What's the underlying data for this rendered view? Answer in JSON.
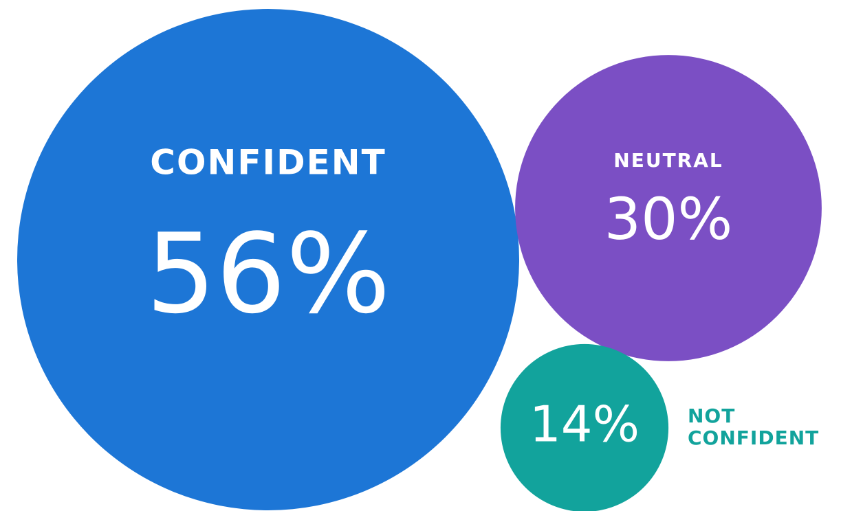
{
  "chart_data": {
    "type": "bubble",
    "categories": [
      "CONFIDENT",
      "NEUTRAL",
      "NOT CONFIDENT"
    ],
    "values": [
      56,
      30,
      14
    ],
    "value_labels": [
      "56%",
      "30%",
      "14%"
    ],
    "colors": [
      "#1d76d6",
      "#7b4fc4",
      "#12a39c"
    ]
  }
}
